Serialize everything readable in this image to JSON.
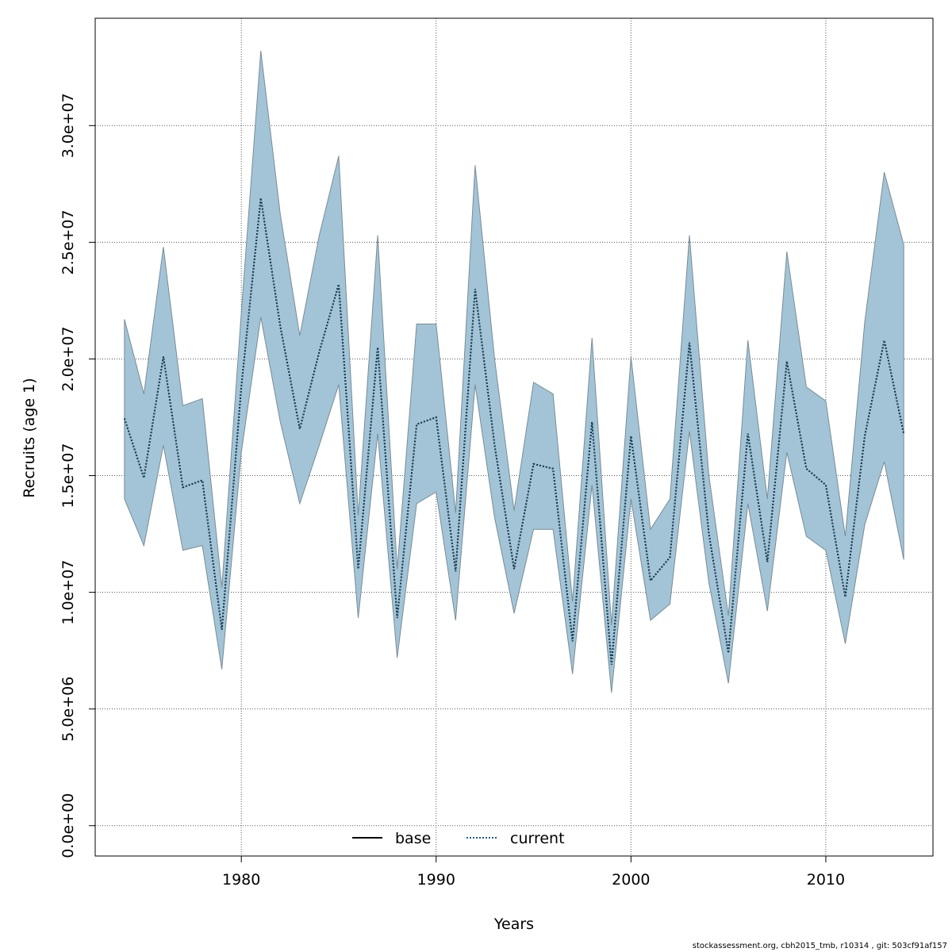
{
  "chart_data": {
    "type": "line",
    "xlabel": "Years",
    "ylabel": "Recruits (age 1)",
    "xlim": [
      1972.5,
      2015.5
    ],
    "ylim": [
      -1300000,
      34600000
    ],
    "x_ticks": [
      1980,
      1990,
      2000,
      2010
    ],
    "x_tick_labels": [
      "1980",
      "1990",
      "2000",
      "2010"
    ],
    "y_ticks": [
      0,
      5000000,
      10000000,
      15000000,
      20000000,
      25000000,
      30000000
    ],
    "y_tick_labels": [
      "0.0e+00",
      "5.0e+06",
      "1.0e+07",
      "1.5e+07",
      "2.0e+07",
      "2.5e+07",
      "3.0e+07"
    ],
    "grid": true,
    "legend_placement": "bottom",
    "band_color": "#a2c4d6",
    "band_edge_color": "#7a8c96",
    "x": [
      1974,
      1975,
      1976,
      1977,
      1978,
      1979,
      1980,
      1981,
      1982,
      1983,
      1984,
      1985,
      1986,
      1987,
      1988,
      1989,
      1990,
      1991,
      1992,
      1993,
      1994,
      1995,
      1996,
      1997,
      1998,
      1999,
      2000,
      2001,
      2002,
      2003,
      2004,
      2005,
      2006,
      2007,
      2008,
      2009,
      2010,
      2011,
      2012,
      2013,
      2014
    ],
    "upper": [
      21700000,
      18500000,
      24800000,
      18000000,
      18300000,
      10200000,
      22000000,
      33200000,
      26200000,
      21000000,
      25300000,
      28700000,
      13300000,
      25300000,
      11000000,
      21500000,
      21500000,
      13400000,
      28300000,
      20000000,
      13500000,
      19000000,
      18500000,
      9600000,
      20900000,
      8600000,
      20100000,
      12700000,
      14000000,
      25300000,
      15000000,
      9000000,
      20800000,
      14000000,
      24600000,
      18800000,
      18200000,
      12400000,
      21600000,
      28000000,
      24900000
    ],
    "lower": [
      14000000,
      12000000,
      16300000,
      11800000,
      12000000,
      6700000,
      16000000,
      21800000,
      17300000,
      13800000,
      16300000,
      18900000,
      8900000,
      16800000,
      7200000,
      13800000,
      14300000,
      8800000,
      18900000,
      13200000,
      9100000,
      12700000,
      12700000,
      6500000,
      14600000,
      5700000,
      14000000,
      8800000,
      9500000,
      16900000,
      10400000,
      6100000,
      13800000,
      9200000,
      16000000,
      12400000,
      11800000,
      7800000,
      12900000,
      15600000,
      11400000
    ],
    "series": [
      {
        "name": "base",
        "color": "#000000",
        "values": [
          17450000,
          14900000,
          20100000,
          14500000,
          14800000,
          8400000,
          18800000,
          26900000,
          21400000,
          17000000,
          20300000,
          23200000,
          11000000,
          20500000,
          8900000,
          17200000,
          17500000,
          10900000,
          23000000,
          16300000,
          11000000,
          15500000,
          15300000,
          7900000,
          17300000,
          6900000,
          16700000,
          10500000,
          11500000,
          20700000,
          12500000,
          7400000,
          16800000,
          11300000,
          19900000,
          15300000,
          14600000,
          9800000,
          16700000,
          20800000,
          16800000
        ]
      },
      {
        "name": "current",
        "color": "#1a5f8a",
        "values": [
          17450000,
          14900000,
          20100000,
          14500000,
          14800000,
          8400000,
          18800000,
          26900000,
          21400000,
          17000000,
          20300000,
          23200000,
          11000000,
          20500000,
          8900000,
          17200000,
          17500000,
          10900000,
          23000000,
          16300000,
          11000000,
          15500000,
          15300000,
          7900000,
          17300000,
          6900000,
          16700000,
          10500000,
          11500000,
          20700000,
          12500000,
          7400000,
          16800000,
          11300000,
          19900000,
          15300000,
          14600000,
          9800000,
          16700000,
          20800000,
          16800000
        ]
      }
    ]
  },
  "footer": "stockassessment.org, cbh2015_tmb, r10314 , git: 503cf91af157"
}
